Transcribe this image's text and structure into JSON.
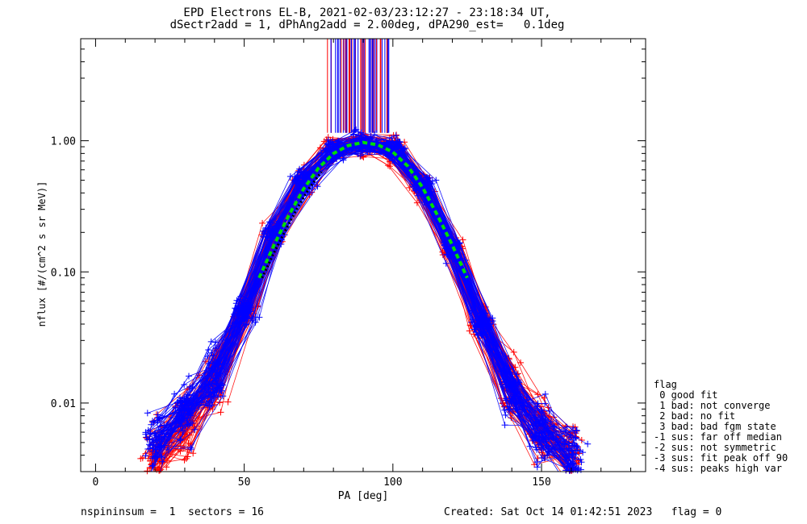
{
  "header": {
    "title_line1": "EPD Electrons EL-B, 2021-02-03/23:12:27 - 23:18:34 UT,",
    "title_line2": "dSectr2add = 1, dPhAng2add = 2.00deg, dPA290_est=   0.1deg"
  },
  "legend": {
    "title": "flag",
    "items": [
      " 0 good fit",
      " 1 bad: not converge",
      " 2 bad: no fit",
      " 3 bad: bad fgm state",
      "-1 sus: far off median",
      "-2 sus: not symmetric",
      "-3 sus: fit peak off 90",
      "-4 sus: peaks high var"
    ]
  },
  "footer": {
    "left": "nspininsum =  1  sectors = 16",
    "right": "Created: Sat Oct 14 01:42:51 2023   flag = 0"
  },
  "colors": {
    "series_red": "#ff0000",
    "series_blue": "#0000ff",
    "fit_green": "#00dd00",
    "fit_black": "#000000"
  },
  "chart_data": {
    "type": "line",
    "title": "EPD Electrons EL-B, 2021-02-03/23:12:27 - 23:18:34 UT,",
    "subtitle": "dSectr2add = 1, dPhAng2add = 2.00deg, dPA290_est=   0.1deg",
    "xlabel": "PA [deg]",
    "ylabel": "nflux [#/(cm^2 s sr MeV)]",
    "xlim": [
      -5,
      185
    ],
    "ylim": [
      0.003,
      6
    ],
    "yscale": "log",
    "x_ticks": [
      0,
      50,
      100,
      150
    ],
    "x_tick_labels": [
      "0",
      "50",
      "100",
      "150"
    ],
    "y_ticks": [
      0.01,
      0.1,
      1.0
    ],
    "y_tick_labels": [
      "0.01",
      "0.10",
      "1.00"
    ],
    "grid": false,
    "legend_position": "right",
    "series": [
      {
        "color": "red",
        "description": "spin-sector pitch-angle distributions (many overlapping curves)",
        "x": [
          20,
          30,
          40,
          50,
          60,
          70,
          80,
          90,
          100,
          110,
          120,
          130,
          140,
          150,
          160
        ],
        "values": [
          0.004,
          0.007,
          0.015,
          0.05,
          0.2,
          0.5,
          0.85,
          0.95,
          0.85,
          0.45,
          0.15,
          0.04,
          0.012,
          0.006,
          0.004
        ]
      },
      {
        "color": "blue",
        "description": "spin-sector pitch-angle distributions (many overlapping curves)",
        "x": [
          20,
          30,
          40,
          50,
          60,
          70,
          80,
          90,
          100,
          110,
          120,
          130,
          140,
          150,
          160
        ],
        "values": [
          0.005,
          0.008,
          0.016,
          0.05,
          0.2,
          0.5,
          0.85,
          0.95,
          0.85,
          0.45,
          0.15,
          0.04,
          0.012,
          0.006,
          0.004
        ]
      },
      {
        "color": "green",
        "style": "dashed",
        "description": "fit",
        "x": [
          55,
          60,
          65,
          70,
          75,
          80,
          85,
          90,
          95,
          100,
          105,
          110,
          115,
          120,
          125
        ],
        "values": [
          0.09,
          0.16,
          0.27,
          0.43,
          0.62,
          0.8,
          0.92,
          0.97,
          0.93,
          0.82,
          0.64,
          0.44,
          0.27,
          0.16,
          0.09
        ]
      },
      {
        "color": "black",
        "style": "dotted",
        "description": "fit",
        "x": [
          56,
          60,
          64,
          68,
          72,
          76
        ],
        "values": [
          0.09,
          0.14,
          0.21,
          0.31,
          0.44,
          0.58
        ]
      }
    ],
    "spike_region_x": [
      78,
      100
    ]
  }
}
